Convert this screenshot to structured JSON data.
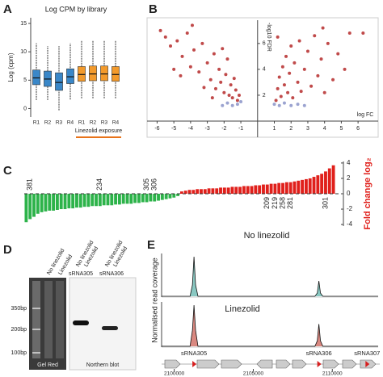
{
  "panel_labels": [
    "A",
    "B",
    "C",
    "D",
    "E"
  ],
  "chart_data": [
    {
      "type": "box",
      "title": "Log CPM by library",
      "y_label": "Log (cpm)",
      "categories": [
        "R1",
        "R2",
        "R3",
        "R4",
        "R1",
        "R2",
        "R3",
        "R4"
      ],
      "boxes": [
        {
          "color": "#3a87c8",
          "min": 1.5,
          "q1": 4.2,
          "median": 5.4,
          "q3": 6.8,
          "max": 11.5
        },
        {
          "color": "#3a87c8",
          "min": 1.5,
          "q1": 3.9,
          "median": 5.2,
          "q3": 6.6,
          "max": 11
        },
        {
          "color": "#3a87c8",
          "min": -0.3,
          "q1": 3.2,
          "median": 4.6,
          "q3": 6.3,
          "max": 11
        },
        {
          "color": "#3a87c8",
          "min": 1.6,
          "q1": 4.4,
          "median": 5.6,
          "q3": 7.0,
          "max": 11.5
        },
        {
          "color": "#f39a2b",
          "min": 1.8,
          "q1": 4.8,
          "median": 6.0,
          "q3": 7.4,
          "max": 12
        },
        {
          "color": "#f39a2b",
          "min": 1.8,
          "q1": 4.9,
          "median": 6.1,
          "q3": 7.5,
          "max": 12
        },
        {
          "color": "#f39a2b",
          "min": 1.8,
          "q1": 4.9,
          "median": 6.1,
          "q3": 7.5,
          "max": 12
        },
        {
          "color": "#f39a2b",
          "min": 1.8,
          "q1": 4.8,
          "median": 6.0,
          "q3": 7.4,
          "max": 12
        }
      ],
      "group_label": "Linezolid exposure",
      "group_color": "#e8731a",
      "ylim": [
        -1.5,
        16
      ],
      "yticks": [
        0,
        5,
        10,
        15
      ]
    },
    {
      "type": "scatter",
      "x_label": "log FC",
      "y_label": "-log10 FDR",
      "xlim": [
        -6.6,
        7.2
      ],
      "ylim": [
        0,
        7.8
      ],
      "xticks": [
        -6,
        -5,
        -4,
        -3,
        -2,
        -1,
        1,
        2,
        3,
        4,
        5,
        6
      ],
      "yticks": [
        2,
        4,
        6
      ],
      "series": [
        {
          "color": "#b52a2a",
          "x": [
            -5.8,
            -5.5,
            -5.2,
            -4.8,
            -4.5,
            -4.2,
            -4.0,
            -3.8,
            -3.5,
            -3.3,
            -3.0,
            -2.8,
            -2.6,
            -2.5,
            -2.3,
            -2.2,
            -2.0,
            -1.9,
            -1.8,
            -1.7,
            -1.6,
            -1.5,
            -1.4,
            -1.3,
            -1.2,
            -1.1,
            -2.7,
            -3.2,
            -4.6,
            -5.0,
            -3.9,
            -2.1,
            1.1,
            1.2,
            1.3,
            1.4,
            1.5,
            1.6,
            1.7,
            1.8,
            1.9,
            2.0,
            2.1,
            2.2,
            2.4,
            2.5,
            2.6,
            2.8,
            3.0,
            3.2,
            3.4,
            3.6,
            3.8,
            4.0,
            4.2,
            4.5,
            4.8,
            5.2,
            5.5,
            6.3,
            1.2,
            3.9
          ],
          "y": [
            7.0,
            6.5,
            5.8,
            6.2,
            5.0,
            6.8,
            4.2,
            5.5,
            3.8,
            6.0,
            4.5,
            3.2,
            5.2,
            2.5,
            4.0,
            3.0,
            2.2,
            3.6,
            4.8,
            2.0,
            2.8,
            1.8,
            3.3,
            2.4,
            1.6,
            2.0,
            1.8,
            2.6,
            3.5,
            4.0,
            7.4,
            5.6,
            1.6,
            2.5,
            3.4,
            1.9,
            4.2,
            2.8,
            5.0,
            2.2,
            3.7,
            5.8,
            1.8,
            4.5,
            3.0,
            6.2,
            2.3,
            4.0,
            5.4,
            2.7,
            6.6,
            3.5,
            4.8,
            2.2,
            6.0,
            3.2,
            5.2,
            4.0,
            6.8,
            6.8,
            6.5,
            7.2
          ]
        },
        {
          "color": "#8a93c8",
          "x": [
            -1.2,
            -1.5,
            -1.8,
            -2.1,
            -1.0,
            1.0,
            1.3,
            1.6,
            2.0,
            2.4,
            2.8
          ],
          "y": [
            1.3,
            1.2,
            1.4,
            1.2,
            1.5,
            1.3,
            1.2,
            1.4,
            1.2,
            1.3,
            1.2
          ]
        }
      ]
    },
    {
      "type": "bar",
      "y_label": "Fold change log₂",
      "y_label_color": "#e0201b",
      "negative_color": "#2db34a",
      "positive_color": "#e0201b",
      "ylim": [
        -4.2,
        4.2
      ],
      "yticks": [
        -4,
        -2,
        0,
        2,
        4
      ],
      "categories": [
        null,
        "381",
        null,
        null,
        null,
        null,
        null,
        null,
        null,
        null,
        null,
        null,
        null,
        null,
        null,
        null,
        null,
        null,
        null,
        "234",
        null,
        null,
        null,
        null,
        null,
        null,
        null,
        null,
        null,
        null,
        null,
        "305",
        null,
        "306",
        null,
        null,
        null,
        null,
        null,
        null,
        null,
        null,
        null,
        null,
        null,
        null,
        null,
        null,
        null,
        null,
        null,
        null,
        null,
        null,
        null,
        null,
        null,
        null,
        null,
        null,
        null,
        null,
        "209",
        null,
        "219",
        null,
        "258",
        null,
        "281",
        null,
        null,
        null,
        null,
        null,
        null,
        null,
        null,
        "301",
        null,
        null
      ],
      "values": [
        -3.7,
        -3.3,
        -3.0,
        -2.6,
        -2.4,
        -2.3,
        -2.2,
        -2.2,
        -2.1,
        -2.0,
        -2.0,
        -1.9,
        -1.9,
        -1.8,
        -1.8,
        -1.7,
        -1.7,
        -1.6,
        -1.6,
        -1.6,
        -1.5,
        -1.5,
        -1.5,
        -1.4,
        -1.4,
        -1.3,
        -1.3,
        -1.3,
        -1.2,
        -1.2,
        -1.1,
        -1.1,
        -1.0,
        -1.0,
        -0.9,
        -0.8,
        -0.7,
        -0.6,
        -0.5,
        -0.3,
        0.3,
        0.4,
        0.5,
        0.5,
        0.6,
        0.6,
        0.6,
        0.7,
        0.7,
        0.7,
        0.8,
        0.8,
        0.8,
        0.9,
        0.9,
        0.9,
        1.0,
        1.0,
        1.0,
        1.1,
        1.1,
        1.2,
        1.2,
        1.3,
        1.3,
        1.4,
        1.4,
        1.5,
        1.5,
        1.6,
        1.7,
        1.8,
        1.9,
        2.0,
        2.2,
        2.4,
        2.6,
        2.9,
        3.3,
        3.7
      ]
    },
    {
      "type": "line",
      "y_label": "Normalised read coverage",
      "xlim": [
        2099200,
        2112900
      ],
      "xticks": [
        2100000,
        2105000,
        2110000
      ],
      "ylim": [
        0,
        1
      ],
      "x": [
        2099200,
        2101000,
        2101150,
        2101250,
        2101350,
        2101500,
        2108900,
        2109050,
        2109150,
        2109250,
        2109400,
        2112900
      ],
      "series": [
        {
          "name": "No linezolid",
          "color": "#3aa39a",
          "values": [
            0.02,
            0.02,
            0.3,
            1.0,
            0.3,
            0.02,
            0.02,
            0.1,
            0.4,
            0.1,
            0.02,
            0.02
          ]
        },
        {
          "name": "Linezolid",
          "color": "#c0392b",
          "values": [
            0.02,
            0.02,
            0.4,
            1.0,
            0.4,
            0.02,
            0.02,
            0.15,
            0.55,
            0.15,
            0.02,
            0.02
          ]
        }
      ],
      "features": [
        {
          "label": "sRNA305",
          "x": 2101250
        },
        {
          "label": "sRNA306",
          "x": 2109150
        },
        {
          "label": "sRNA307",
          "x": 2112200
        }
      ]
    }
  ],
  "gel": {
    "lane_labels": [
      "No linezolid",
      "Linezolid",
      "No linezolid",
      "Linezolid",
      "No linezolid",
      "Linezolid"
    ],
    "blot_labels": [
      "sRNA305",
      "sRNA306"
    ],
    "ladder": [
      "350bp",
      "200bp",
      "100bp"
    ],
    "captions": [
      "Gel Red",
      "Northern blot"
    ]
  }
}
